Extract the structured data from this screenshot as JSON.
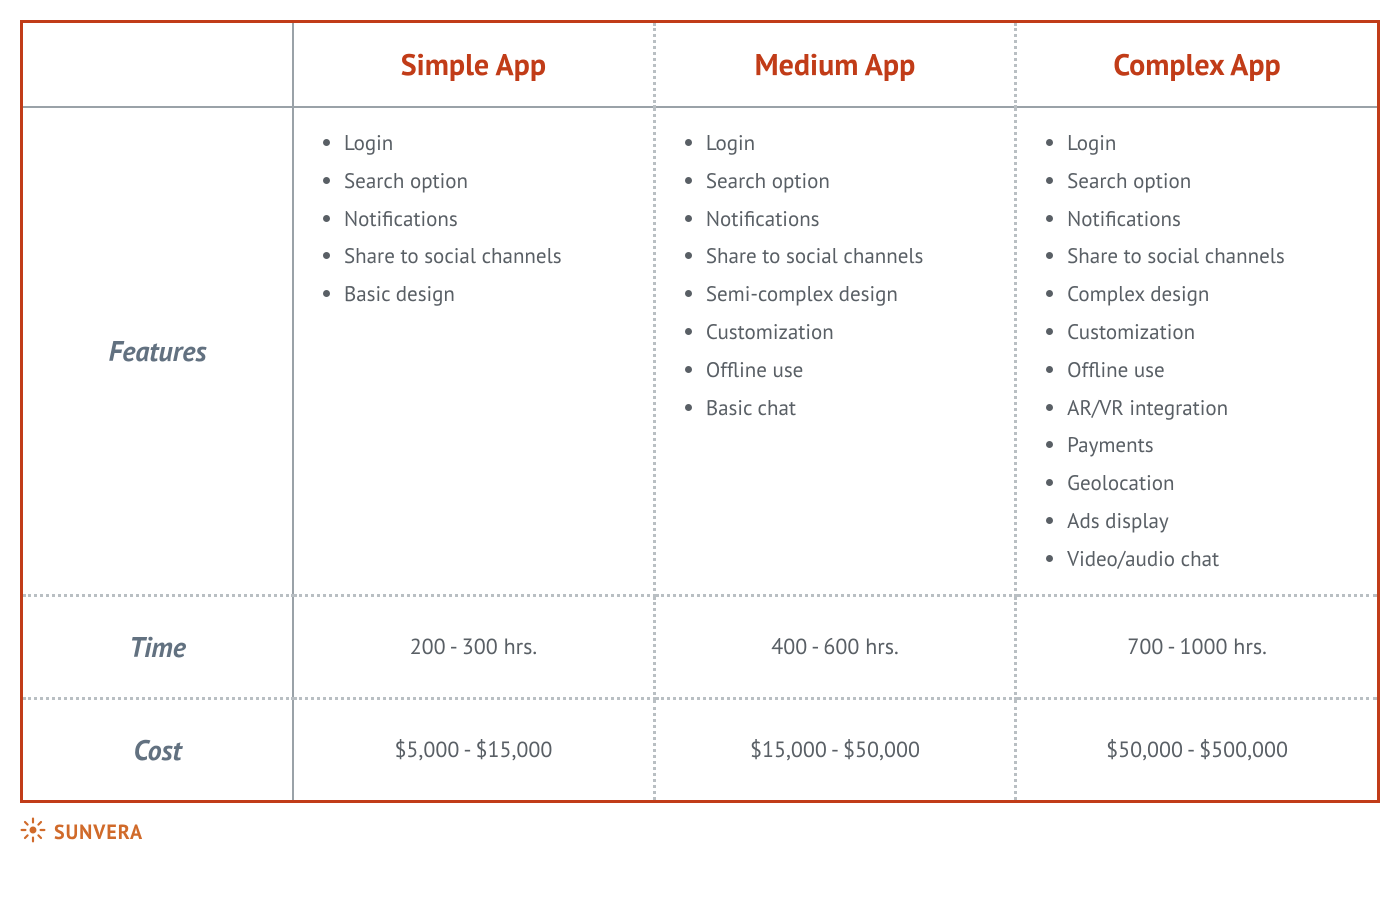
{
  "table": {
    "type": "table",
    "border_color": "#c13c18",
    "solid_divider_color": "#9aa2a8",
    "dotted_divider_color": "#b9bfc3",
    "background_color": "#ffffff",
    "header_text_color": "#c13c18",
    "header_fontsize": 30,
    "row_label_color": "#627180",
    "row_label_fontsize": 28,
    "body_text_color": "#595f65",
    "body_fontsize": 21,
    "columns": [
      "Simple App",
      "Medium App",
      "Complex App"
    ],
    "rows": {
      "features": {
        "label": "Features",
        "simple": [
          "Login",
          "Search option",
          "Notifications",
          "Share to social channels",
          "Basic design"
        ],
        "medium": [
          "Login",
          "Search option",
          "Notifications",
          "Share to social channels",
          "Semi-complex design",
          "Customization",
          "Offline use",
          "Basic chat"
        ],
        "complex": [
          "Login",
          "Search option",
          "Notifications",
          "Share to social channels",
          "Complex design",
          "Customization",
          "Offline use",
          "AR/VR integration",
          "Payments",
          "Geolocation",
          "Ads display",
          "Video/audio chat"
        ]
      },
      "time": {
        "label": "Time",
        "simple": "200 - 300 hrs.",
        "medium": "400 - 600 hrs.",
        "complex": "700 - 1000 hrs."
      },
      "cost": {
        "label": "Cost",
        "simple": "$5,000 - $15,000",
        "medium": "$15,000 - $50,000",
        "complex": "$50,000 - $500,000"
      }
    }
  },
  "footer": {
    "brand": "SUNVERA",
    "brand_color": "#d06a2a"
  }
}
